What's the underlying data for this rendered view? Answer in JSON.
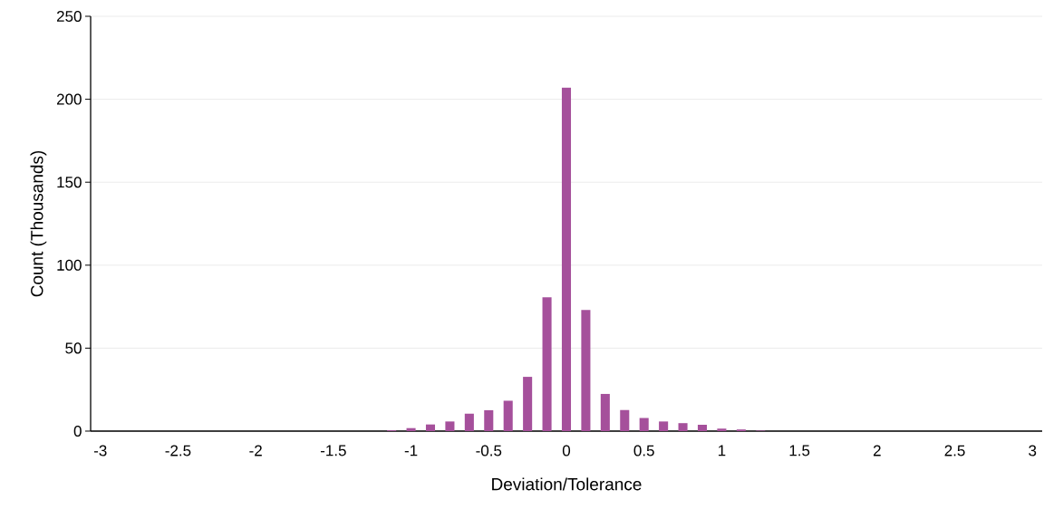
{
  "chart_data": {
    "type": "bar",
    "xlabel": "Deviation/Tolerance",
    "ylabel": "Count (Thousands)",
    "categories": [
      "-3",
      null,
      null,
      null,
      "-2.5",
      null,
      null,
      null,
      "-2",
      null,
      null,
      null,
      "-1.5",
      null,
      null,
      null,
      "-1",
      null,
      null,
      null,
      "-0.5",
      null,
      null,
      null,
      "0",
      null,
      null,
      null,
      "0.5",
      null,
      null,
      null,
      "1",
      null,
      null,
      null,
      "1.5",
      null,
      null,
      null,
      "2",
      null,
      null,
      null,
      "2.5",
      null,
      null,
      null,
      "3"
    ],
    "values": [
      0,
      0,
      0,
      0,
      0,
      0,
      0,
      0,
      0,
      0,
      0,
      0,
      0,
      0,
      0,
      0.5,
      1.8,
      4,
      5.8,
      10.5,
      12.6,
      18.3,
      32.7,
      80.6,
      207,
      73,
      22.4,
      12.7,
      7.9,
      5.8,
      4.8,
      3.8,
      1.5,
      1.0,
      0.3,
      0,
      0,
      0,
      0,
      0,
      0,
      0,
      0,
      0,
      0,
      0,
      0,
      0,
      0
    ],
    "color": "#a5509b",
    "ylim": [
      0,
      250
    ],
    "yticks": [
      0,
      50,
      100,
      150,
      200,
      250
    ],
    "grid": "y"
  }
}
